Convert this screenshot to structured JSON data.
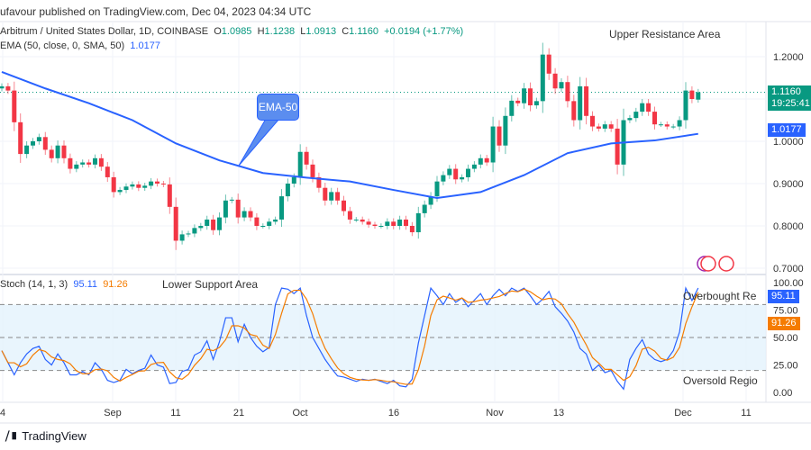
{
  "header": {
    "published": "ufavour published on TradingView.com, Dec 04, 2023 04:34 UTC"
  },
  "legend": {
    "symbol": "Arbitrum / United States Dollar, 1D, COINBASE",
    "o_label": "O",
    "o": "1.0985",
    "h_label": "H",
    "h": "1.1238",
    "l_label": "L",
    "l": "1.0913",
    "c_label": "C",
    "c": "1.1160",
    "change": "+0.0194 (+1.77%)",
    "ema_label": "EMA (50, close, 0, SMA, 50)",
    "ema_value": "1.0177",
    "stoch_label": "Stoch (14, 1, 3)",
    "stoch_k": "95.11",
    "stoch_d": "91.26"
  },
  "annotations": {
    "upper": "Upper Resistance Area",
    "lower": "Lower Support Area",
    "ema_callout": "EMA-50",
    "overbought": "Overbought Re",
    "oversold": "Oversold Regio"
  },
  "price_tags": {
    "last": "1.1160",
    "countdown": "19:25:41",
    "ema": "1.0177",
    "k": "95.11",
    "d": "91.26"
  },
  "colors": {
    "up": "#089981",
    "down": "#f23645",
    "ema": "#2962ff",
    "k": "#2962ff",
    "d": "#f57c00",
    "band": "#e3f2fd"
  },
  "footer": {
    "brand": "TradingView"
  },
  "chart_data": [
    {
      "type": "candlestick",
      "price_ticks": [
        "1.2000",
        "1.1000",
        "1.0000",
        "0.9000",
        "0.8000",
        "0.7000"
      ],
      "ylim": [
        0.7,
        1.2
      ],
      "x_ticks": [
        "4",
        "Sep",
        "11",
        "21",
        "Oct",
        "16",
        "Nov",
        "13",
        "Dec",
        "11"
      ],
      "closes": [
        1.13,
        1.12,
        1.045,
        0.97,
        0.99,
        1.0,
        1.01,
        0.98,
        0.96,
        0.99,
        0.96,
        0.935,
        0.945,
        0.95,
        0.945,
        0.96,
        0.94,
        0.915,
        0.88,
        0.885,
        0.893,
        0.898,
        0.89,
        0.895,
        0.905,
        0.9,
        0.898,
        0.845,
        0.765,
        0.78,
        0.782,
        0.795,
        0.8,
        0.815,
        0.79,
        0.82,
        0.86,
        0.862,
        0.82,
        0.835,
        0.82,
        0.8,
        0.8,
        0.81,
        0.815,
        0.87,
        0.9,
        0.915,
        0.975,
        0.945,
        0.915,
        0.89,
        0.86,
        0.88,
        0.86,
        0.835,
        0.815,
        0.815,
        0.81,
        0.803,
        0.8,
        0.8,
        0.81,
        0.8,
        0.815,
        0.8,
        0.785,
        0.83,
        0.85,
        0.87,
        0.905,
        0.92,
        0.935,
        0.91,
        0.915,
        0.935,
        0.945,
        0.96,
        0.95,
        1.035,
        0.99,
        1.06,
        1.096,
        1.09,
        1.125,
        1.085,
        1.095,
        1.205,
        1.16,
        1.125,
        1.14,
        1.095,
        1.05,
        1.13,
        1.06,
        1.035,
        1.03,
        1.04,
        1.03,
        0.945,
        1.05,
        1.055,
        1.07,
        1.09,
        1.07,
        1.04,
        1.04,
        1.035,
        1.035,
        1.05,
        1.12,
        1.1,
        1.116
      ],
      "last_ohlc": [
        1.0985,
        1.1238,
        1.0913,
        1.116
      ],
      "ema50_weekly": [
        1.164,
        1.125,
        1.09,
        1.05,
        0.995,
        0.955,
        0.925,
        0.914,
        0.905,
        0.885,
        0.866,
        0.88,
        0.92,
        0.972,
        0.995,
        1.002,
        1.0177
      ]
    },
    {
      "type": "line",
      "ticks": [
        "100.00",
        "75.00",
        "50.00",
        "25.00",
        "0.00"
      ],
      "ylim": [
        0,
        100
      ],
      "bands": [
        20,
        50,
        80
      ],
      "k": [
        38,
        27,
        16,
        27,
        35,
        40,
        42,
        30,
        25,
        35,
        27,
        16,
        16,
        19,
        16,
        27,
        21,
        11,
        9,
        11,
        21,
        17,
        20,
        22,
        34,
        25,
        23,
        8,
        9,
        19,
        21,
        34,
        37,
        47,
        30,
        46,
        68,
        68,
        46,
        62,
        50,
        42,
        37,
        41,
        80,
        95,
        94,
        90,
        95,
        70,
        50,
        40,
        30,
        22,
        15,
        14,
        12,
        10,
        12,
        11,
        12,
        10,
        8,
        11,
        6,
        5,
        12,
        45,
        70,
        95,
        88,
        80,
        90,
        82,
        86,
        78,
        84,
        90,
        80,
        88,
        94,
        88,
        95,
        92,
        95,
        88,
        80,
        85,
        92,
        78,
        72,
        65,
        55,
        40,
        35,
        20,
        25,
        18,
        20,
        10,
        3,
        30,
        40,
        48,
        35,
        30,
        28,
        30,
        38,
        55,
        95,
        83.67,
        95.11
      ]
    }
  ]
}
